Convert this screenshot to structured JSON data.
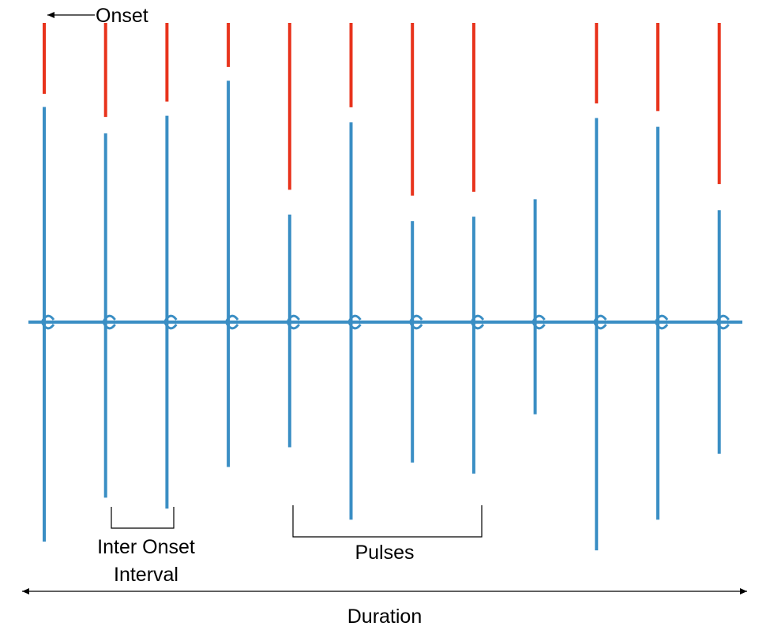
{
  "labels": {
    "onset": "Onset",
    "inter_onset_line1": "Inter Onset",
    "inter_onset_line2": "Interval",
    "pulses": "Pulses",
    "duration": "Duration"
  },
  "colors": {
    "signal": "#3a8ec4",
    "marker": "#e8331c",
    "annotation": "#000000"
  },
  "chart_data": {
    "type": "line",
    "pulse_count": 12,
    "pulses": [
      {
        "index": 1,
        "marker_strength": 0.37,
        "peak_up": 0.98,
        "peak_down": 1.0
      },
      {
        "index": 2,
        "marker_strength": 0.49,
        "peak_up": 0.86,
        "peak_down": 0.8
      },
      {
        "index": 3,
        "marker_strength": 0.41,
        "peak_up": 0.94,
        "peak_down": 0.85
      },
      {
        "index": 4,
        "marker_strength": 0.23,
        "peak_up": 1.1,
        "peak_down": 0.66
      },
      {
        "index": 5,
        "marker_strength": 0.87,
        "peak_up": 0.49,
        "peak_down": 0.57
      },
      {
        "index": 6,
        "marker_strength": 0.44,
        "peak_up": 0.91,
        "peak_down": 0.9
      },
      {
        "index": 7,
        "marker_strength": 0.9,
        "peak_up": 0.46,
        "peak_down": 0.64
      },
      {
        "index": 8,
        "marker_strength": 0.88,
        "peak_up": 0.48,
        "peak_down": 0.69
      },
      {
        "index": 9,
        "marker_strength": 0.0,
        "peak_up": 0.56,
        "peak_down": 0.42
      },
      {
        "index": 10,
        "marker_strength": 0.42,
        "peak_up": 0.93,
        "peak_down": 1.04
      },
      {
        "index": 11,
        "marker_strength": 0.46,
        "peak_up": 0.89,
        "peak_down": 0.9
      },
      {
        "index": 12,
        "marker_strength": 0.84,
        "peak_up": 0.51,
        "peak_down": 0.6
      }
    ]
  }
}
